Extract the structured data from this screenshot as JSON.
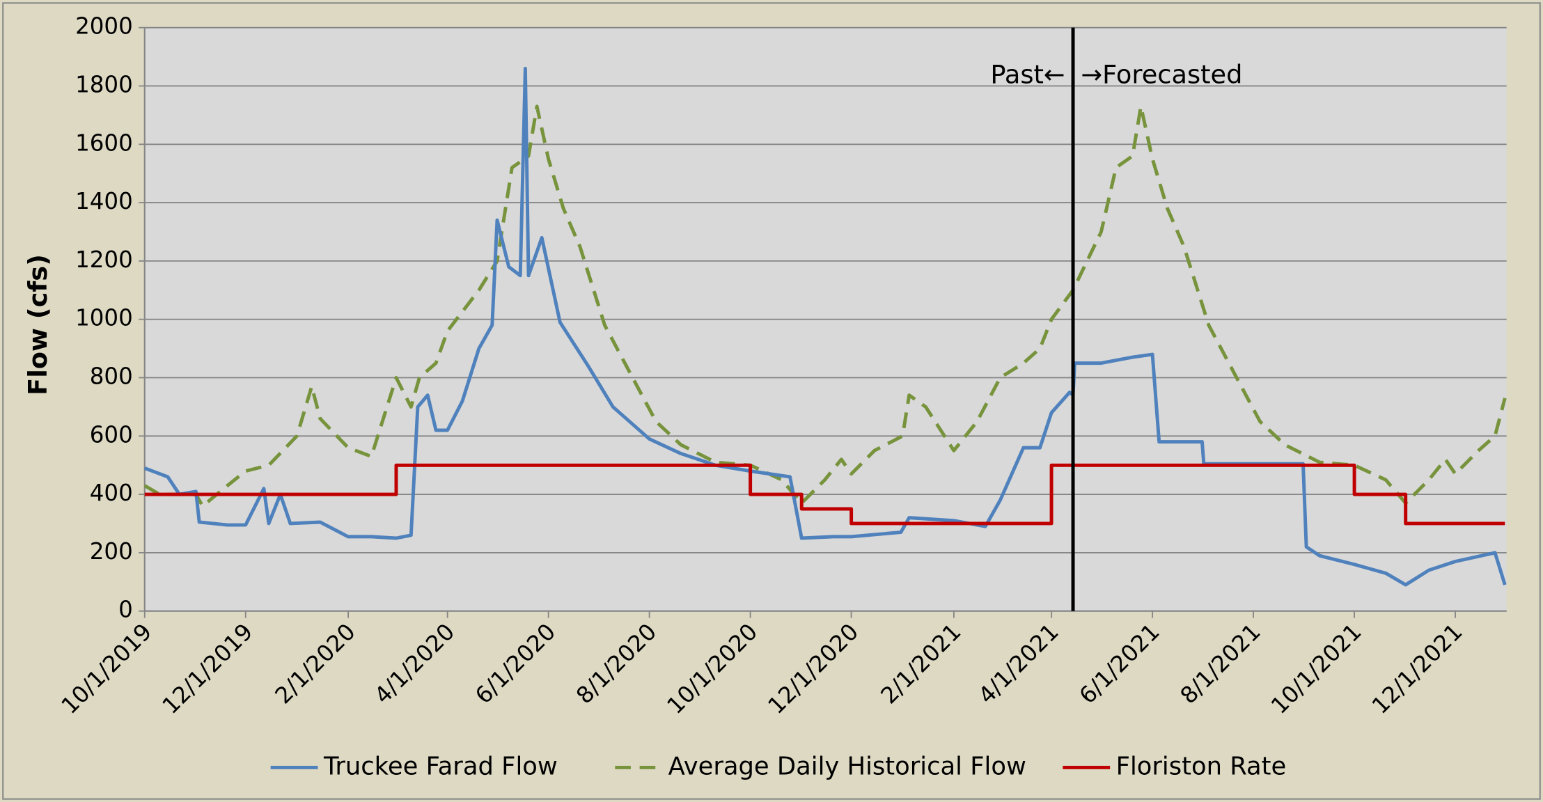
{
  "chart_data": {
    "type": "line",
    "ylabel": "Flow (cfs)",
    "xlim": [
      "10/1/2019",
      "1/1/2022"
    ],
    "xticks": [
      "10/1/2019",
      "12/1/2019",
      "2/1/2020",
      "4/1/2020",
      "6/1/2020",
      "8/1/2020",
      "10/1/2020",
      "12/1/2020",
      "2/1/2021",
      "4/1/2021",
      "6/1/2021",
      "8/1/2021",
      "10/1/2021",
      "12/1/2021"
    ],
    "ylim": [
      0,
      2000
    ],
    "yticks": [
      0,
      200,
      400,
      600,
      800,
      1000,
      1200,
      1400,
      1600,
      1800,
      2000
    ],
    "grid": true,
    "legend": "bottom",
    "divider": "4/14/2021",
    "annotations": [
      "Past←",
      "→Forecasted"
    ],
    "series": [
      {
        "name": "Truckee Farad Flow",
        "color": "#4f81bd",
        "dash": false,
        "x": [
          "10/1/2019",
          "10/15/2019",
          "10/22/2019",
          "11/1/2019",
          "11/3/2019",
          "11/20/2019",
          "12/1/2019",
          "12/12/2019",
          "12/15/2019",
          "12/22/2019",
          "12/28/2019",
          "1/15/2020",
          "2/1/2020",
          "2/15/2020",
          "3/1/2020",
          "3/10/2020",
          "3/14/2020",
          "3/20/2020",
          "3/25/2020",
          "4/1/2020",
          "4/10/2020",
          "4/20/2020",
          "4/28/2020",
          "5/1/2020",
          "5/8/2020",
          "5/15/2020",
          "5/18/2020",
          "5/20/2020",
          "5/28/2020",
          "6/8/2020",
          "6/25/2020",
          "7/10/2020",
          "8/1/2020",
          "8/20/2020",
          "9/10/2020",
          "10/1/2020",
          "10/25/2020",
          "11/1/2020",
          "11/20/2020",
          "12/1/2020",
          "12/31/2020",
          "1/5/2021",
          "2/1/2021",
          "2/20/2021",
          "3/1/2021",
          "3/15/2021",
          "3/25/2021",
          "4/1/2021",
          "4/12/2021",
          "4/14/2021",
          "4/15/2021",
          "5/1/2021",
          "5/20/2021",
          "6/1/2021",
          "6/5/2021",
          "7/1/2021",
          "7/2/2021",
          "8/31/2021",
          "9/2/2021",
          "9/10/2021",
          "10/1/2021",
          "10/20/2021",
          "11/1/2021",
          "11/15/2021",
          "12/1/2021",
          "12/25/2021",
          "12/31/2021"
        ],
        "values": [
          490,
          460,
          400,
          410,
          305,
          295,
          295,
          420,
          300,
          400,
          300,
          305,
          255,
          255,
          250,
          260,
          700,
          740,
          620,
          620,
          720,
          900,
          980,
          1340,
          1180,
          1150,
          1860,
          1150,
          1280,
          990,
          840,
          700,
          590,
          540,
          500,
          480,
          460,
          250,
          255,
          255,
          270,
          320,
          310,
          290,
          380,
          560,
          560,
          680,
          750,
          740,
          850,
          850,
          870,
          880,
          580,
          580,
          505,
          505,
          220,
          190,
          160,
          130,
          90,
          140,
          170,
          200,
          90
        ]
      },
      {
        "name": "Average Daily Historical Flow",
        "color": "#77933c",
        "dash": true,
        "x": [
          "10/1/2019",
          "10/10/2019",
          "11/1/2019",
          "11/5/2019",
          "11/20/2019",
          "12/1/2019",
          "12/15/2019",
          "1/1/2020",
          "1/10/2020",
          "1/15/2020",
          "2/1/2020",
          "2/15/2020",
          "3/1/2020",
          "3/10/2020",
          "3/15/2020",
          "3/25/2020",
          "4/1/2020",
          "4/20/2020",
          "5/1/2020",
          "5/10/2020",
          "5/20/2020",
          "5/25/2020",
          "6/1/2020",
          "6/10/2020",
          "6/20/2020",
          "7/5/2020",
          "7/20/2020",
          "8/5/2020",
          "8/20/2020",
          "9/10/2020",
          "10/1/2020",
          "10/20/2020",
          "11/1/2020",
          "11/15/2020",
          "11/25/2020",
          "12/1/2020",
          "12/15/2020",
          "1/1/2021",
          "1/5/2021",
          "1/15/2021",
          "2/1/2021",
          "2/15/2021",
          "3/1/2021",
          "3/15/2021",
          "3/25/2021",
          "4/1/2021",
          "4/14/2021",
          "5/1/2021",
          "5/10/2021",
          "5/20/2021",
          "5/25/2021",
          "6/1/2021",
          "6/10/2021",
          "6/20/2021",
          "7/5/2021",
          "7/20/2021",
          "8/5/2021",
          "8/20/2021",
          "9/10/2021",
          "10/1/2021",
          "10/20/2021",
          "11/1/2021",
          "11/15/2021",
          "11/25/2021",
          "12/1/2021",
          "12/15/2021",
          "12/25/2021",
          "12/31/2021"
        ],
        "values": [
          430,
          400,
          400,
          360,
          430,
          480,
          500,
          600,
          770,
          660,
          560,
          530,
          800,
          700,
          800,
          850,
          960,
          1100,
          1200,
          1520,
          1560,
          1730,
          1550,
          1380,
          1250,
          980,
          820,
          650,
          570,
          510,
          500,
          450,
          370,
          450,
          520,
          470,
          550,
          600,
          740,
          700,
          550,
          650,
          800,
          850,
          900,
          1000,
          1100,
          1300,
          1520,
          1560,
          1730,
          1550,
          1380,
          1250,
          980,
          820,
          650,
          570,
          510,
          500,
          450,
          370,
          450,
          520,
          470,
          550,
          600,
          730
        ]
      },
      {
        "name": "Floriston Rate",
        "color": "#c00000",
        "dash": false,
        "x": [
          "10/1/2019",
          "3/1/2020",
          "3/1/2020",
          "10/1/2020",
          "10/1/2020",
          "11/1/2020",
          "11/1/2020",
          "12/1/2020",
          "12/1/2020",
          "4/1/2021",
          "4/1/2021",
          "10/1/2021",
          "10/1/2021",
          "11/1/2021",
          "11/1/2021",
          "12/31/2021"
        ],
        "values": [
          400,
          400,
          500,
          500,
          400,
          400,
          350,
          350,
          300,
          300,
          500,
          500,
          400,
          400,
          300,
          300
        ]
      }
    ]
  }
}
